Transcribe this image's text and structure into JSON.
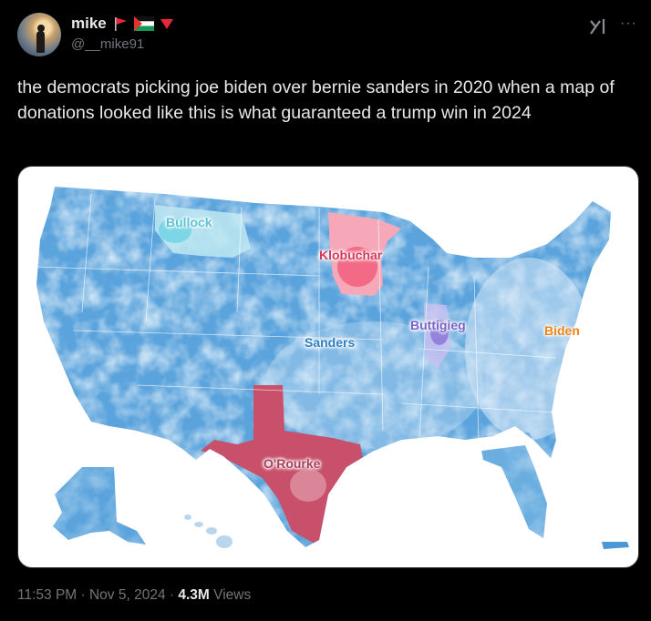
{
  "author": {
    "display_name": "mike",
    "handle": "@__mike91",
    "flags": [
      "red-flag-icon",
      "palestine-flag-icon",
      "red-triangle-icon"
    ]
  },
  "tweet": {
    "text": "the democrats picking joe biden over bernie sanders in 2020 when a map of donations looked like this is what guaranteed a trump win in 2024"
  },
  "map": {
    "labels": {
      "bullock": "Bullock",
      "klobuchar": "Klobuchar",
      "buttigieg": "Buttigieg",
      "sanders": "Sanders",
      "biden": "Biden",
      "orourke": "O'Rourke"
    },
    "colors": {
      "sanders": "#4a98d6",
      "bullock": "#63d0e0",
      "klobuchar": "#f05a78",
      "buttigieg": "#8a72d8",
      "biden": "#f08a1c",
      "orourke": "#c8506a"
    }
  },
  "meta": {
    "time": "11:53 PM",
    "separator1": " · ",
    "date": "Nov 5, 2024",
    "separator2": " · ",
    "views_count": "4.3M",
    "views_label": " Views"
  },
  "icons": {
    "grok": "grok-icon",
    "more": "more-icon"
  }
}
